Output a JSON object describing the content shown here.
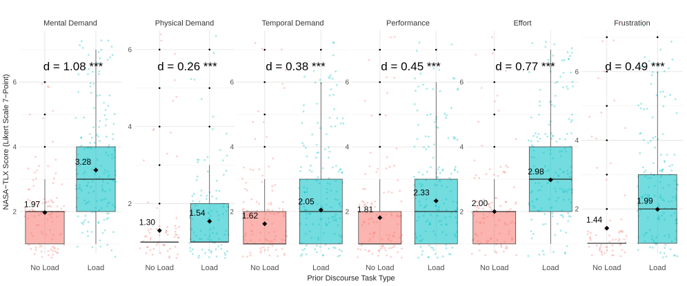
{
  "chart_data": {
    "type": "boxplot",
    "xlabel": "Prior Discourse Task Type",
    "ylabel": "NASA−TLX Score (Likert Scale 7−Point)",
    "categories": [
      "No Load",
      "Load"
    ],
    "colors": {
      "No Load": "#F8766D",
      "Load": "#00BFC4"
    },
    "grid": true,
    "legend": "none",
    "facets": [
      {
        "title": "Mental Demand",
        "effect_label": "d = 1.08 ***",
        "ylim": [
          0.7,
          7.6
        ],
        "yticks": [
          2,
          4,
          6
        ],
        "groups": [
          {
            "category": "No Load",
            "min": 1,
            "q1": 1,
            "median": 2,
            "q3": 2,
            "max": 3,
            "mean": 1.97,
            "mean_label": "1.97",
            "outliers": [
              4,
              5,
              6
            ]
          },
          {
            "category": "Load",
            "min": 1,
            "q1": 2,
            "median": 3,
            "q3": 4,
            "max": 7,
            "mean": 3.28,
            "mean_label": "3.28",
            "outliers": []
          }
        ]
      },
      {
        "title": "Physical Demand",
        "effect_label": "d = 0.26 ***",
        "ylim": [
          0.7,
          6.5
        ],
        "yticks": [
          2,
          4,
          6
        ],
        "groups": [
          {
            "category": "No Load",
            "min": 1,
            "q1": 1,
            "median": 1,
            "q3": 1,
            "max": 1,
            "mean": 1.3,
            "mean_label": "1.30",
            "outliers": [
              2,
              3,
              4,
              5,
              6
            ]
          },
          {
            "category": "Load",
            "min": 1,
            "q1": 1,
            "median": 1,
            "q3": 2,
            "max": 3,
            "mean": 1.54,
            "mean_label": "1.54",
            "outliers": [
              4,
              5,
              6
            ]
          }
        ]
      },
      {
        "title": "Temporal Demand",
        "effect_label": "d = 0.38 ***",
        "ylim": [
          0.7,
          7.6
        ],
        "yticks": [
          2,
          4,
          6
        ],
        "groups": [
          {
            "category": "No Load",
            "min": 1,
            "q1": 1,
            "median": 1,
            "q3": 2,
            "max": 3,
            "mean": 1.62,
            "mean_label": "1.62",
            "outliers": [
              4,
              5,
              6,
              7
            ]
          },
          {
            "category": "Load",
            "min": 1,
            "q1": 1,
            "median": 2,
            "q3": 3,
            "max": 6,
            "mean": 2.05,
            "mean_label": "2.05",
            "outliers": [
              7
            ]
          }
        ]
      },
      {
        "title": "Performance",
        "effect_label": "d = 0.45 ***",
        "ylim": [
          0.7,
          7.6
        ],
        "yticks": [
          2,
          4,
          6
        ],
        "groups": [
          {
            "category": "No Load",
            "min": 1,
            "q1": 1,
            "median": 1,
            "q3": 2,
            "max": 3,
            "mean": 1.81,
            "mean_label": "1.81",
            "outliers": [
              4,
              5,
              6,
              7
            ]
          },
          {
            "category": "Load",
            "min": 1,
            "q1": 1,
            "median": 2,
            "q3": 3,
            "max": 6,
            "mean": 2.33,
            "mean_label": "2.33",
            "outliers": [
              7
            ]
          }
        ]
      },
      {
        "title": "Effort",
        "effect_label": "d = 0.77 ***",
        "ylim": [
          0.7,
          7.6
        ],
        "yticks": [
          2,
          4,
          6
        ],
        "groups": [
          {
            "category": "No Load",
            "min": 1,
            "q1": 1,
            "median": 2,
            "q3": 2,
            "max": 3,
            "mean": 2.0,
            "mean_label": "2.00",
            "outliers": [
              4,
              5,
              6,
              7
            ]
          },
          {
            "category": "Load",
            "min": 1,
            "q1": 2,
            "median": 3,
            "q3": 4,
            "max": 7,
            "mean": 2.98,
            "mean_label": "2.98",
            "outliers": []
          }
        ]
      },
      {
        "title": "Frustration",
        "effect_label": "d = 0.49 ***",
        "ylim": [
          0.7,
          7.2
        ],
        "yticks": [
          2,
          4,
          6
        ],
        "groups": [
          {
            "category": "No Load",
            "min": 1,
            "q1": 1,
            "median": 1,
            "q3": 1,
            "max": 1,
            "mean": 1.44,
            "mean_label": "1.44",
            "outliers": [
              2,
              3,
              4,
              5,
              6,
              7
            ]
          },
          {
            "category": "Load",
            "min": 1,
            "q1": 1,
            "median": 2,
            "q3": 3,
            "max": 6,
            "mean": 1.99,
            "mean_label": "1.99",
            "outliers": [
              7
            ]
          }
        ]
      }
    ]
  }
}
